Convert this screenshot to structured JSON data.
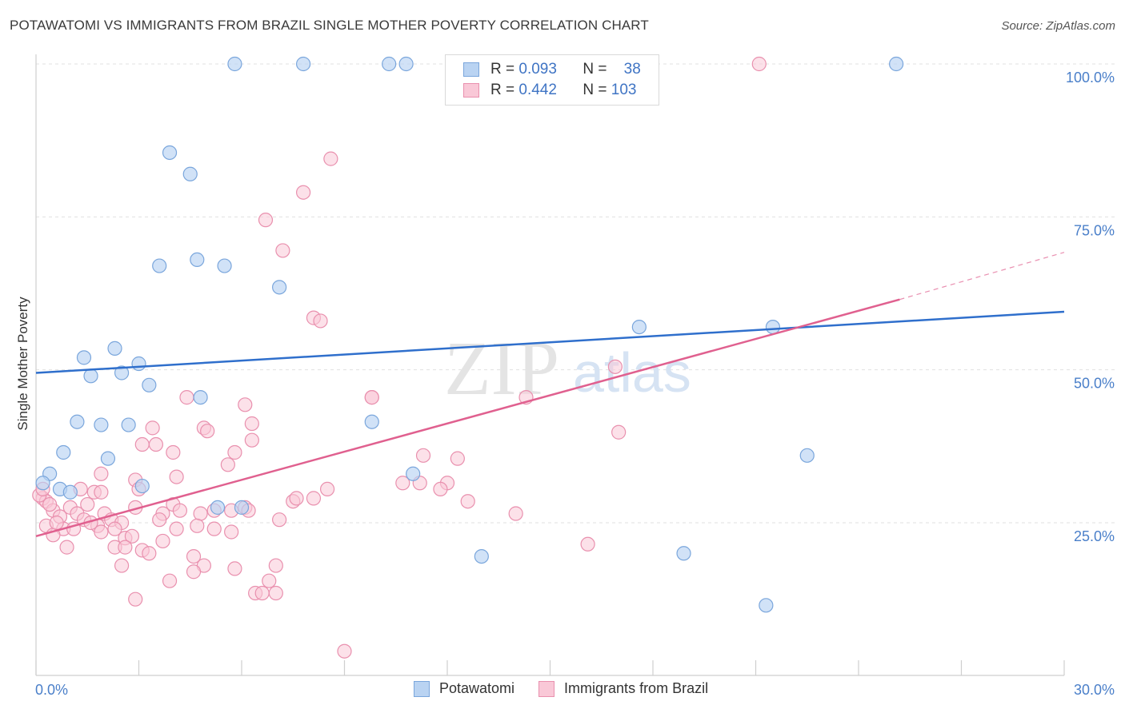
{
  "header": {
    "title": "POTAWATOMI VS IMMIGRANTS FROM BRAZIL SINGLE MOTHER POVERTY CORRELATION CHART",
    "source": "Source: ZipAtlas.com"
  },
  "legend": {
    "rows": [
      {
        "r_label": "R =",
        "r_value": "0.093",
        "n_label": "N =",
        "n_value": "38"
      },
      {
        "r_label": "R =",
        "r_value": "0.442",
        "n_label": "N =",
        "n_value": "103"
      }
    ]
  },
  "bottom_legend": {
    "items": [
      "Potawatomi",
      "Immigrants from Brazil"
    ]
  },
  "watermark": {
    "zip": "ZIP",
    "atlas": "atlas"
  },
  "colors": {
    "blue_fill": "#b9d3f2",
    "blue_stroke": "#7aa6dc",
    "blue_line": "#2f6fcc",
    "pink_fill": "#f9c8d7",
    "pink_stroke": "#e990ae",
    "pink_line": "#e0608f",
    "tick_text": "#4a7fc9",
    "grid": "#dddddd"
  },
  "chart_data": {
    "type": "scatter",
    "title": "POTAWATOMI VS IMMIGRANTS FROM BRAZIL SINGLE MOTHER POVERTY CORRELATION CHART",
    "xlabel": "",
    "ylabel": "Single Mother Poverty",
    "xlim": [
      0,
      30
    ],
    "ylim": [
      0,
      104
    ],
    "x_tick_labels": [
      "0.0%",
      "30.0%"
    ],
    "y_ticks": [
      25,
      50,
      75,
      100
    ],
    "y_tick_labels": [
      "25.0%",
      "50.0%",
      "75.0%",
      "100.0%"
    ],
    "grid": true,
    "legend_position": "top-center",
    "series": [
      {
        "name": "Potawatomi",
        "color": "#b9d3f2",
        "stroke": "#7aa6dc",
        "points": [
          [
            5.8,
            100
          ],
          [
            7.8,
            100
          ],
          [
            10.3,
            100
          ],
          [
            10.8,
            100
          ],
          [
            25.1,
            100
          ],
          [
            3.9,
            85.5
          ],
          [
            4.5,
            82
          ],
          [
            4.7,
            68
          ],
          [
            3.6,
            67
          ],
          [
            5.5,
            67
          ],
          [
            7.1,
            63.5
          ],
          [
            17.6,
            57
          ],
          [
            21.5,
            57
          ],
          [
            2.3,
            53.5
          ],
          [
            1.4,
            52
          ],
          [
            3.0,
            51
          ],
          [
            2.5,
            49.5
          ],
          [
            1.6,
            49
          ],
          [
            3.3,
            47.5
          ],
          [
            4.8,
            45.5
          ],
          [
            1.2,
            41.5
          ],
          [
            1.9,
            41
          ],
          [
            2.7,
            41
          ],
          [
            9.8,
            41.5
          ],
          [
            0.8,
            36.5
          ],
          [
            2.1,
            35.5
          ],
          [
            22.5,
            36
          ],
          [
            0.4,
            33
          ],
          [
            11.0,
            33
          ],
          [
            0.7,
            30.5
          ],
          [
            1.0,
            30
          ],
          [
            0.2,
            31.5
          ],
          [
            3.1,
            31
          ],
          [
            5.3,
            27.5
          ],
          [
            6.0,
            27.5
          ],
          [
            13.0,
            19.5
          ],
          [
            18.9,
            20
          ],
          [
            21.3,
            11.5
          ]
        ],
        "trend": {
          "x": [
            0,
            30
          ],
          "y": [
            49.5,
            59.5
          ]
        }
      },
      {
        "name": "Immigrants from Brazil",
        "color": "#f9c8d7",
        "stroke": "#e990ae",
        "points": [
          [
            21.1,
            100
          ],
          [
            8.6,
            84.5
          ],
          [
            7.8,
            79
          ],
          [
            6.7,
            74.5
          ],
          [
            7.2,
            69.5
          ],
          [
            8.1,
            58.5
          ],
          [
            8.3,
            58
          ],
          [
            16.9,
            50.5
          ],
          [
            4.4,
            45.5
          ],
          [
            9.8,
            45.5
          ],
          [
            9.8,
            45.5
          ],
          [
            14.3,
            45.5
          ],
          [
            6.1,
            44.3
          ],
          [
            3.4,
            40.5
          ],
          [
            4.9,
            40.5
          ],
          [
            5.0,
            40
          ],
          [
            6.3,
            41.2
          ],
          [
            17.0,
            39.8
          ],
          [
            6.3,
            38.5
          ],
          [
            3.1,
            37.8
          ],
          [
            3.5,
            37.8
          ],
          [
            4.0,
            36.5
          ],
          [
            5.8,
            36.5
          ],
          [
            11.3,
            36
          ],
          [
            12.3,
            35.5
          ],
          [
            5.6,
            34.5
          ],
          [
            1.9,
            33
          ],
          [
            4.1,
            32.5
          ],
          [
            2.9,
            32
          ],
          [
            10.7,
            31.5
          ],
          [
            11.2,
            31.5
          ],
          [
            12.0,
            31.5
          ],
          [
            1.3,
            30.5
          ],
          [
            1.7,
            30
          ],
          [
            1.9,
            30
          ],
          [
            3.0,
            30.5
          ],
          [
            8.5,
            30.5
          ],
          [
            11.8,
            30.5
          ],
          [
            0.2,
            29
          ],
          [
            0.3,
            28.5
          ],
          [
            7.5,
            28.5
          ],
          [
            7.6,
            29
          ],
          [
            12.6,
            28.5
          ],
          [
            1.5,
            28
          ],
          [
            4.0,
            28
          ],
          [
            4.2,
            27
          ],
          [
            6.1,
            27.5
          ],
          [
            0.5,
            27
          ],
          [
            1.0,
            27.5
          ],
          [
            1.2,
            26.5
          ],
          [
            2.0,
            26.5
          ],
          [
            3.7,
            26.5
          ],
          [
            4.8,
            26.5
          ],
          [
            5.2,
            27
          ],
          [
            5.7,
            27
          ],
          [
            14.0,
            26.5
          ],
          [
            0.7,
            26
          ],
          [
            1.4,
            25.5
          ],
          [
            2.2,
            25.5
          ],
          [
            2.5,
            25
          ],
          [
            3.6,
            25.5
          ],
          [
            4.7,
            24.5
          ],
          [
            7.1,
            25.5
          ],
          [
            0.3,
            24.5
          ],
          [
            0.8,
            24
          ],
          [
            1.1,
            24
          ],
          [
            1.8,
            24.5
          ],
          [
            2.3,
            24
          ],
          [
            5.2,
            24
          ],
          [
            5.7,
            23.5
          ],
          [
            0.5,
            23
          ],
          [
            1.9,
            23.5
          ],
          [
            2.6,
            22.5
          ],
          [
            2.8,
            22.8
          ],
          [
            3.7,
            22
          ],
          [
            0.9,
            21
          ],
          [
            2.3,
            21
          ],
          [
            2.6,
            21
          ],
          [
            3.1,
            20.5
          ],
          [
            16.1,
            21.5
          ],
          [
            4.6,
            19.5
          ],
          [
            2.5,
            18
          ],
          [
            4.9,
            18
          ],
          [
            5.8,
            17.5
          ],
          [
            7.0,
            18
          ],
          [
            4.6,
            17
          ],
          [
            3.9,
            15.5
          ],
          [
            6.8,
            15.5
          ],
          [
            6.4,
            13.5
          ],
          [
            6.6,
            13.5
          ],
          [
            7.0,
            13.5
          ],
          [
            2.9,
            12.5
          ],
          [
            9.0,
            4
          ],
          [
            0.1,
            29.5
          ],
          [
            0.2,
            30.5
          ],
          [
            0.4,
            28
          ],
          [
            0.6,
            25
          ],
          [
            1.6,
            25
          ],
          [
            2.9,
            27.5
          ],
          [
            3.3,
            20
          ],
          [
            4.1,
            24
          ],
          [
            6.2,
            27
          ],
          [
            8.1,
            29
          ]
        ],
        "trend": {
          "x": [
            0,
            25.2
          ],
          "y": [
            22.8,
            61.5
          ]
        },
        "trend_dashed": {
          "x": [
            25.2,
            30
          ],
          "y": [
            61.5,
            69.2
          ]
        }
      }
    ]
  }
}
